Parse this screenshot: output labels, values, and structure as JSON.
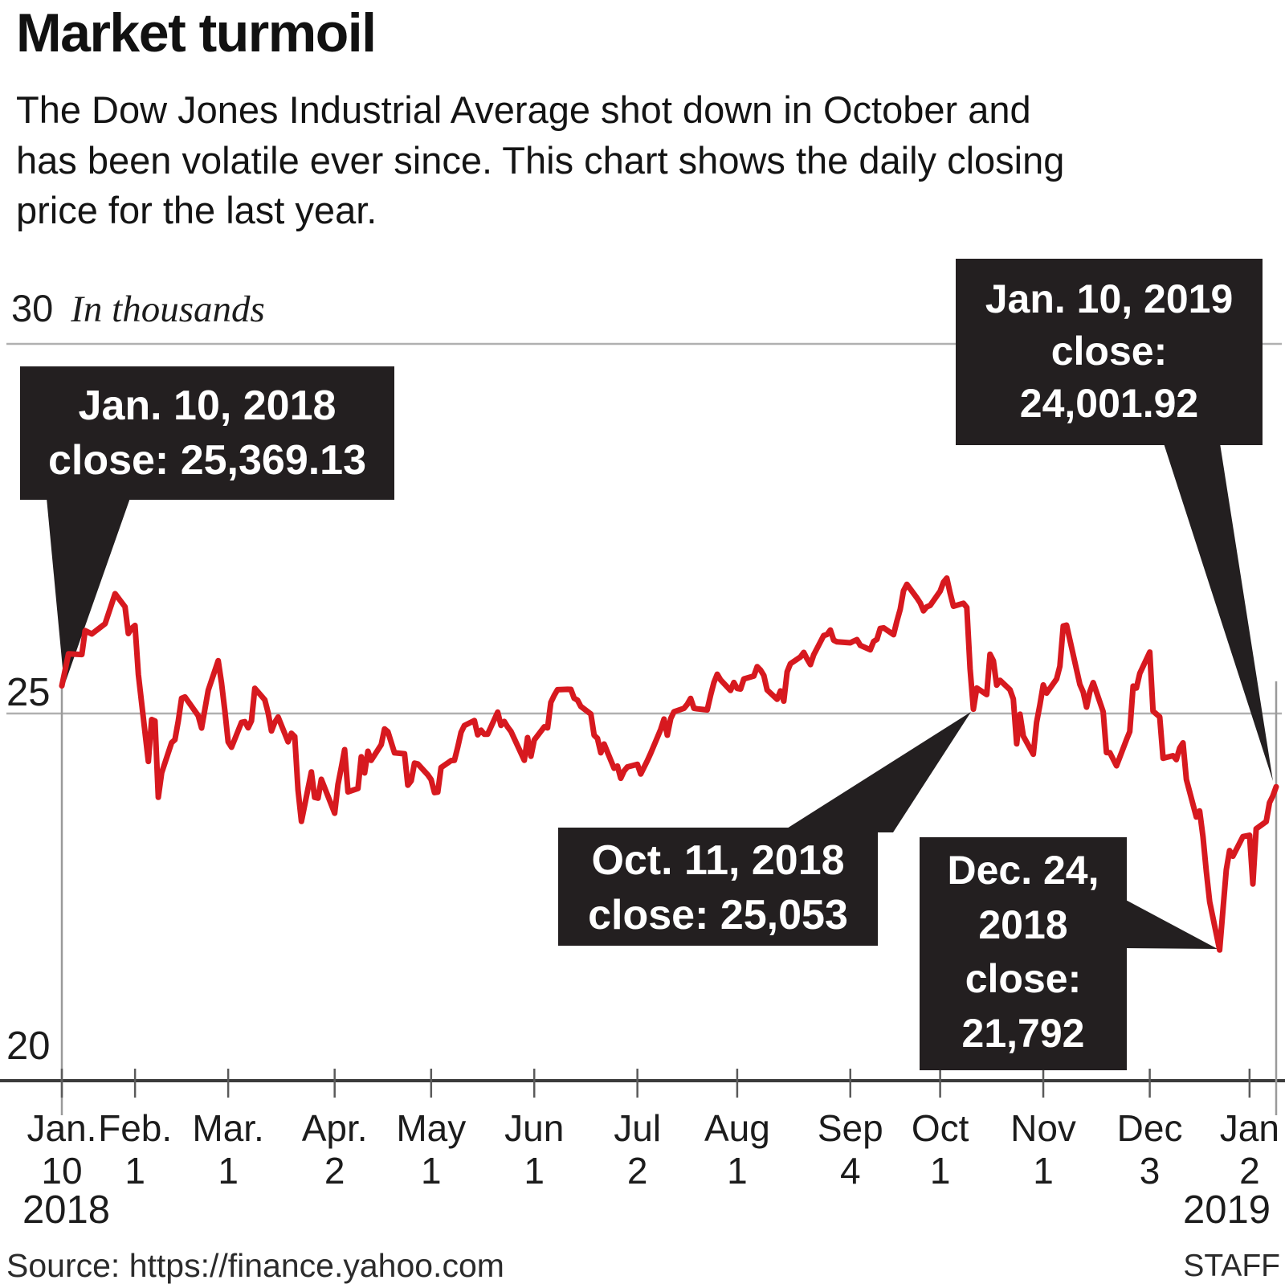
{
  "header": {
    "title": "Market turmoil",
    "subtitle_lines": [
      "The Dow Jones Industrial Average shot down in October and",
      "has been volatile ever since. This chart shows the daily closing",
      "price for the last year."
    ]
  },
  "y_axis": {
    "top_label": "30",
    "unit_note": "In thousands",
    "mid_label": "25",
    "bottom_label": "20"
  },
  "x_axis": {
    "ticks": [
      {
        "month": "Jan.",
        "day": "10",
        "d": 0
      },
      {
        "month": "Feb.",
        "day": "1",
        "d": 22
      },
      {
        "month": "Mar.",
        "day": "1",
        "d": 50
      },
      {
        "month": "Apr.",
        "day": "2",
        "d": 82
      },
      {
        "month": "May",
        "day": "1",
        "d": 111
      },
      {
        "month": "Jun",
        "day": "1",
        "d": 142
      },
      {
        "month": "Jul",
        "day": "2",
        "d": 173
      },
      {
        "month": "Aug",
        "day": "1",
        "d": 203
      },
      {
        "month": "Sep",
        "day": "4",
        "d": 237
      },
      {
        "month": "Oct",
        "day": "1",
        "d": 264
      },
      {
        "month": "Nov",
        "day": "1",
        "d": 295
      },
      {
        "month": "Dec",
        "day": "3",
        "d": 327
      },
      {
        "month": "Jan",
        "day": "2",
        "d": 357
      }
    ],
    "year_left": "2018",
    "year_right": "2019"
  },
  "callouts": [
    {
      "id": "jan-10-2018",
      "lines": [
        "Jan. 10, 2018",
        "close: 25,369.13"
      ]
    },
    {
      "id": "jan-10-2019",
      "lines": [
        "Jan. 10, 2019",
        "close:",
        "24,001.92"
      ]
    },
    {
      "id": "oct-11-2018",
      "lines": [
        "Oct. 11, 2018",
        "close: 25,053"
      ]
    },
    {
      "id": "dec-24-2018",
      "lines": [
        "Dec. 24,",
        "2018",
        "close:",
        "21,792"
      ]
    }
  ],
  "footer": {
    "source": "Source: https://finance.yahoo.com",
    "credit": "STAFF"
  },
  "colors": {
    "line": "#d7191f",
    "callout_bg": "#231f20",
    "grid": "#b0b0b0",
    "axis": "#3b3b3b",
    "tick": "#5a5a5a",
    "long_tick": "#9a9a9a"
  },
  "chart_data": {
    "type": "line",
    "title": "Dow Jones Industrial Average daily closing price, Jan. 10, 2018 - Jan. 10, 2019",
    "y_unit": "index level, in thousands",
    "x_unit": "days since Jan. 10, 2018",
    "ylim": [
      20,
      30
    ],
    "y_gridlines": [
      30,
      25,
      20
    ],
    "x_range_days": [
      0,
      365
    ],
    "grid": true,
    "legend": false,
    "key_points": [
      {
        "date": "Jan. 10, 2018",
        "close": 25369.13
      },
      {
        "date": "Oct. 11, 2018",
        "close": 25053
      },
      {
        "date": "Dec. 24, 2018",
        "close": 21792
      },
      {
        "date": "Jan. 10, 2019",
        "close": 24001.92
      }
    ],
    "series": [
      {
        "name": "DJIA close (thousands)",
        "points": [
          [
            0,
            25.369
          ],
          [
            2,
            25.803
          ],
          [
            6,
            25.793
          ],
          [
            7,
            26.116
          ],
          [
            9,
            26.072
          ],
          [
            13,
            26.211
          ],
          [
            16,
            26.617
          ],
          [
            19,
            26.439
          ],
          [
            20,
            26.077
          ],
          [
            21,
            26.149
          ],
          [
            22,
            26.187
          ],
          [
            23,
            25.521
          ],
          [
            26,
            24.346
          ],
          [
            27,
            24.913
          ],
          [
            28,
            24.893
          ],
          [
            29,
            23.86
          ],
          [
            30,
            24.191
          ],
          [
            33,
            24.601
          ],
          [
            34,
            24.64
          ],
          [
            35,
            24.893
          ],
          [
            36,
            25.2
          ],
          [
            37,
            25.219
          ],
          [
            41,
            24.965
          ],
          [
            42,
            24.798
          ],
          [
            44,
            25.31
          ],
          [
            47,
            25.709
          ],
          [
            48,
            25.41
          ],
          [
            49,
            25.029
          ],
          [
            50,
            24.609
          ],
          [
            51,
            24.538
          ],
          [
            54,
            24.875
          ],
          [
            55,
            24.884
          ],
          [
            56,
            24.801
          ],
          [
            57,
            24.895
          ],
          [
            58,
            25.336
          ],
          [
            61,
            25.179
          ],
          [
            62,
            25.007
          ],
          [
            63,
            24.758
          ],
          [
            64,
            24.874
          ],
          [
            65,
            24.947
          ],
          [
            68,
            24.611
          ],
          [
            69,
            24.727
          ],
          [
            70,
            24.682
          ],
          [
            71,
            23.958
          ],
          [
            72,
            23.533
          ],
          [
            75,
            24.203
          ],
          [
            76,
            23.858
          ],
          [
            77,
            23.848
          ],
          [
            78,
            24.103
          ],
          [
            82,
            23.644
          ],
          [
            83,
            24.033
          ],
          [
            84,
            24.264
          ],
          [
            85,
            24.505
          ],
          [
            86,
            23.933
          ],
          [
            89,
            23.979
          ],
          [
            90,
            24.408
          ],
          [
            91,
            24.189
          ],
          [
            92,
            24.483
          ],
          [
            93,
            24.36
          ],
          [
            96,
            24.573
          ],
          [
            97,
            24.786
          ],
          [
            98,
            24.748
          ],
          [
            100,
            24.463
          ],
          [
            103,
            24.449
          ],
          [
            104,
            24.024
          ],
          [
            105,
            24.084
          ],
          [
            106,
            24.322
          ],
          [
            107,
            24.311
          ],
          [
            110,
            24.163
          ],
          [
            111,
            24.099
          ],
          [
            112,
            23.924
          ],
          [
            113,
            23.93
          ],
          [
            114,
            24.263
          ],
          [
            117,
            24.357
          ],
          [
            118,
            24.36
          ],
          [
            119,
            24.542
          ],
          [
            120,
            24.74
          ],
          [
            121,
            24.831
          ],
          [
            124,
            24.899
          ],
          [
            125,
            24.706
          ],
          [
            126,
            24.768
          ],
          [
            127,
            24.714
          ],
          [
            128,
            24.715
          ],
          [
            131,
            25.013
          ],
          [
            132,
            24.834
          ],
          [
            133,
            24.887
          ],
          [
            134,
            24.812
          ],
          [
            135,
            24.753
          ],
          [
            139,
            24.361
          ],
          [
            140,
            24.668
          ],
          [
            141,
            24.416
          ],
          [
            142,
            24.635
          ],
          [
            145,
            24.814
          ],
          [
            146,
            24.8
          ],
          [
            147,
            25.146
          ],
          [
            148,
            25.241
          ],
          [
            149,
            25.317
          ],
          [
            152,
            25.322
          ],
          [
            153,
            25.321
          ],
          [
            154,
            25.201
          ],
          [
            155,
            25.175
          ],
          [
            156,
            25.09
          ],
          [
            159,
            24.987
          ],
          [
            160,
            24.7
          ],
          [
            161,
            24.658
          ],
          [
            162,
            24.462
          ],
          [
            163,
            24.581
          ],
          [
            166,
            24.253
          ],
          [
            167,
            24.283
          ],
          [
            168,
            24.118
          ],
          [
            169,
            24.217
          ],
          [
            170,
            24.271
          ],
          [
            173,
            24.307
          ],
          [
            174,
            24.175
          ],
          [
            176,
            24.357
          ],
          [
            177,
            24.456
          ],
          [
            180,
            24.777
          ],
          [
            181,
            24.92
          ],
          [
            182,
            24.701
          ],
          [
            183,
            24.925
          ],
          [
            184,
            25.019
          ],
          [
            187,
            25.064
          ],
          [
            188,
            25.12
          ],
          [
            189,
            25.199
          ],
          [
            190,
            25.065
          ],
          [
            191,
            25.058
          ],
          [
            194,
            25.044
          ],
          [
            195,
            25.242
          ],
          [
            196,
            25.414
          ],
          [
            197,
            25.527
          ],
          [
            198,
            25.451
          ],
          [
            201,
            25.307
          ],
          [
            202,
            25.415
          ],
          [
            203,
            25.334
          ],
          [
            204,
            25.326
          ],
          [
            205,
            25.463
          ],
          [
            208,
            25.502
          ],
          [
            209,
            25.629
          ],
          [
            210,
            25.584
          ],
          [
            211,
            25.509
          ],
          [
            212,
            25.313
          ],
          [
            215,
            25.187
          ],
          [
            216,
            25.3
          ],
          [
            217,
            25.162
          ],
          [
            218,
            25.559
          ],
          [
            219,
            25.669
          ],
          [
            222,
            25.759
          ],
          [
            223,
            25.822
          ],
          [
            224,
            25.734
          ],
          [
            225,
            25.657
          ],
          [
            226,
            25.79
          ],
          [
            229,
            26.05
          ],
          [
            230,
            26.064
          ],
          [
            231,
            26.125
          ],
          [
            232,
            25.987
          ],
          [
            233,
            25.965
          ],
          [
            237,
            25.952
          ],
          [
            238,
            25.975
          ],
          [
            239,
            25.996
          ],
          [
            240,
            25.917
          ],
          [
            243,
            25.857
          ],
          [
            244,
            25.971
          ],
          [
            245,
            25.999
          ],
          [
            246,
            26.146
          ],
          [
            247,
            26.155
          ],
          [
            250,
            26.062
          ],
          [
            251,
            26.247
          ],
          [
            252,
            26.406
          ],
          [
            253,
            26.657
          ],
          [
            254,
            26.744
          ],
          [
            257,
            26.562
          ],
          [
            258,
            26.492
          ],
          [
            259,
            26.385
          ],
          [
            260,
            26.44
          ],
          [
            261,
            26.458
          ],
          [
            264,
            26.651
          ],
          [
            265,
            26.774
          ],
          [
            266,
            26.828
          ],
          [
            267,
            26.627
          ],
          [
            268,
            26.447
          ],
          [
            271,
            26.487
          ],
          [
            272,
            26.43
          ],
          [
            273,
            25.599
          ],
          [
            274,
            25.053
          ],
          [
            275,
            25.34
          ],
          [
            278,
            25.251
          ],
          [
            279,
            25.798
          ],
          [
            280,
            25.707
          ],
          [
            281,
            25.379
          ],
          [
            282,
            25.444
          ],
          [
            285,
            25.317
          ],
          [
            286,
            25.191
          ],
          [
            287,
            24.584
          ],
          [
            288,
            24.985
          ],
          [
            289,
            24.688
          ],
          [
            292,
            24.443
          ],
          [
            293,
            24.875
          ],
          [
            294,
            25.116
          ],
          [
            295,
            25.381
          ],
          [
            296,
            25.271
          ],
          [
            299,
            25.462
          ],
          [
            300,
            25.635
          ],
          [
            301,
            26.18
          ],
          [
            302,
            26.191
          ],
          [
            303,
            25.989
          ],
          [
            306,
            25.387
          ],
          [
            307,
            25.286
          ],
          [
            308,
            25.081
          ],
          [
            309,
            25.289
          ],
          [
            310,
            25.413
          ],
          [
            313,
            25.017
          ],
          [
            314,
            24.466
          ],
          [
            315,
            24.465
          ],
          [
            317,
            24.286
          ],
          [
            320,
            24.64
          ],
          [
            321,
            24.749
          ],
          [
            322,
            25.366
          ],
          [
            323,
            25.339
          ],
          [
            324,
            25.538
          ],
          [
            327,
            25.826
          ],
          [
            328,
            25.027
          ],
          [
            330,
            24.948
          ],
          [
            331,
            24.389
          ],
          [
            334,
            24.423
          ],
          [
            335,
            24.37
          ],
          [
            336,
            24.527
          ],
          [
            337,
            24.597
          ],
          [
            338,
            24.101
          ],
          [
            341,
            23.593
          ],
          [
            342,
            23.676
          ],
          [
            343,
            23.324
          ],
          [
            344,
            22.86
          ],
          [
            345,
            22.445
          ],
          [
            348,
            21.792
          ],
          [
            350,
            22.878
          ],
          [
            351,
            23.138
          ],
          [
            352,
            23.062
          ],
          [
            355,
            23.327
          ],
          [
            357,
            23.346
          ],
          [
            358,
            22.686
          ],
          [
            359,
            23.433
          ],
          [
            362,
            23.531
          ],
          [
            363,
            23.787
          ],
          [
            364,
            23.879
          ],
          [
            365,
            24.002
          ]
        ]
      }
    ]
  }
}
